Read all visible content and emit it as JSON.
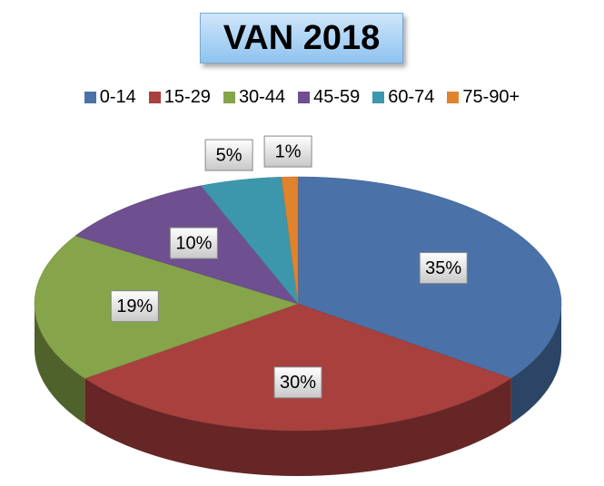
{
  "chart_data": {
    "type": "pie3d",
    "title": "VAN 2018",
    "categories": [
      "0-14",
      "15-29",
      "30-44",
      "45-59",
      "60-74",
      "75-90+"
    ],
    "values": [
      35,
      30,
      19,
      10,
      5,
      1
    ],
    "value_labels": [
      "35%",
      "30%",
      "19%",
      "10%",
      "5%",
      "1%"
    ],
    "colors": [
      "#4a72a8",
      "#a8403e",
      "#86a44a",
      "#6e5090",
      "#3c97ad",
      "#e0832f"
    ],
    "legend": "top"
  }
}
